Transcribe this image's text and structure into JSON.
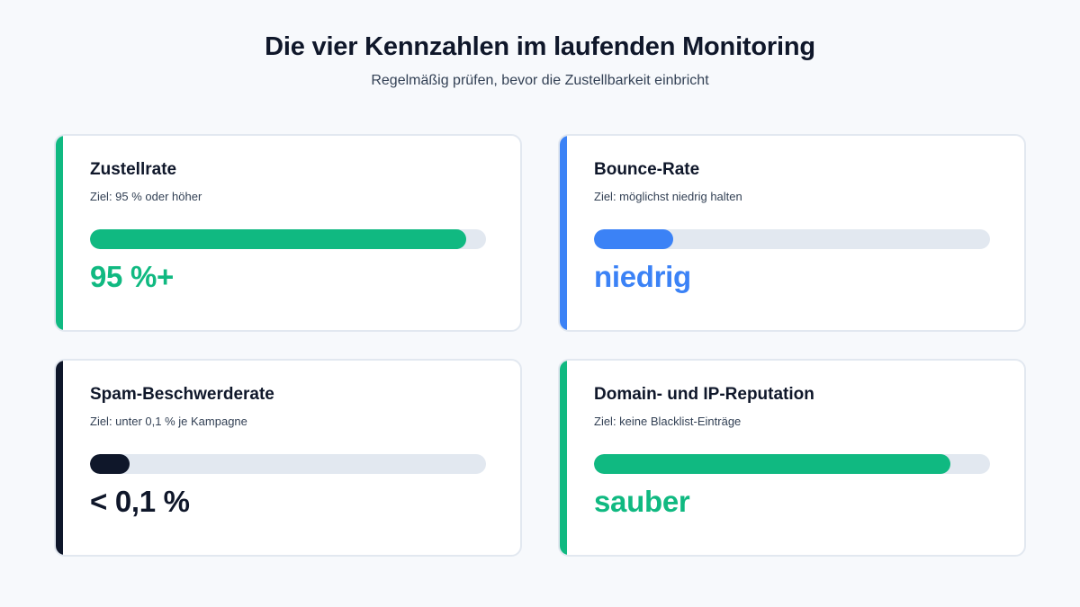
{
  "header": {
    "title": "Die vier Kennzahlen im laufenden Monitoring",
    "subtitle": "Regelmäßig prüfen, bevor die Zustellbarkeit einbricht"
  },
  "metrics": [
    {
      "title": "Zustellrate",
      "target": "Ziel: 95 % oder höher",
      "value": "95 %+",
      "progress_percent": 95,
      "color": "#10b981"
    },
    {
      "title": "Bounce-Rate",
      "target": "Ziel: möglichst niedrig halten",
      "value": "niedrig",
      "progress_percent": 20,
      "color": "#3b82f6"
    },
    {
      "title": "Spam-Beschwerderate",
      "target": "Ziel: unter 0,1 % je Kampagne",
      "value": "< 0,1 %",
      "progress_percent": 10,
      "color": "#0f172a"
    },
    {
      "title": "Domain- und IP-Reputation",
      "target": "Ziel: keine Blacklist-Einträge",
      "value": "sauber",
      "progress_percent": 90,
      "color": "#10b981"
    }
  ]
}
